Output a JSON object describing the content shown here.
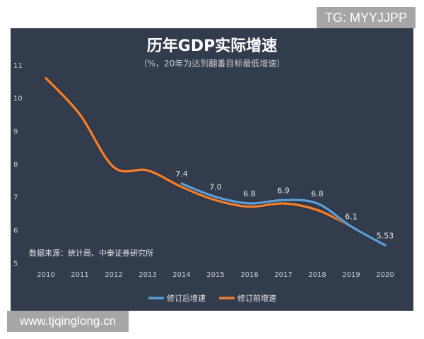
{
  "watermark_top": "TG: MYYJJPP",
  "watermark_bottom": "www.tjqinglong.cn",
  "chart_data": {
    "type": "line",
    "title": "历年GDP实际增速",
    "subtitle": "（%，20年为达到翻番目标最低增速）",
    "source": "数据来源：统计局、中泰证券研究所",
    "x": [
      2010,
      2011,
      2012,
      2013,
      2014,
      2015,
      2016,
      2017,
      2018,
      2019,
      2020
    ],
    "ylim": [
      5,
      11
    ],
    "yticks": [
      5,
      6,
      7,
      8,
      9,
      10,
      11
    ],
    "grid": false,
    "legend": "bottom",
    "series": [
      {
        "name": "修订后增速",
        "color": "#5b9bd5",
        "x": [
          2014,
          2015,
          2016,
          2017,
          2018,
          2019,
          2020
        ],
        "values": [
          7.4,
          7.0,
          6.8,
          6.9,
          6.8,
          6.1,
          5.53
        ],
        "labels": [
          "7.4",
          "7.0",
          "6.8",
          "6.9",
          "6.8",
          "6.1",
          "5.53"
        ]
      },
      {
        "name": "修订前增速",
        "color": "#ed7d31",
        "x": [
          2010,
          2011,
          2012,
          2013,
          2014,
          2015,
          2016,
          2017,
          2018,
          2019
        ],
        "values": [
          10.6,
          9.5,
          7.9,
          7.8,
          7.3,
          6.9,
          6.7,
          6.8,
          6.6,
          6.1
        ]
      }
    ]
  }
}
